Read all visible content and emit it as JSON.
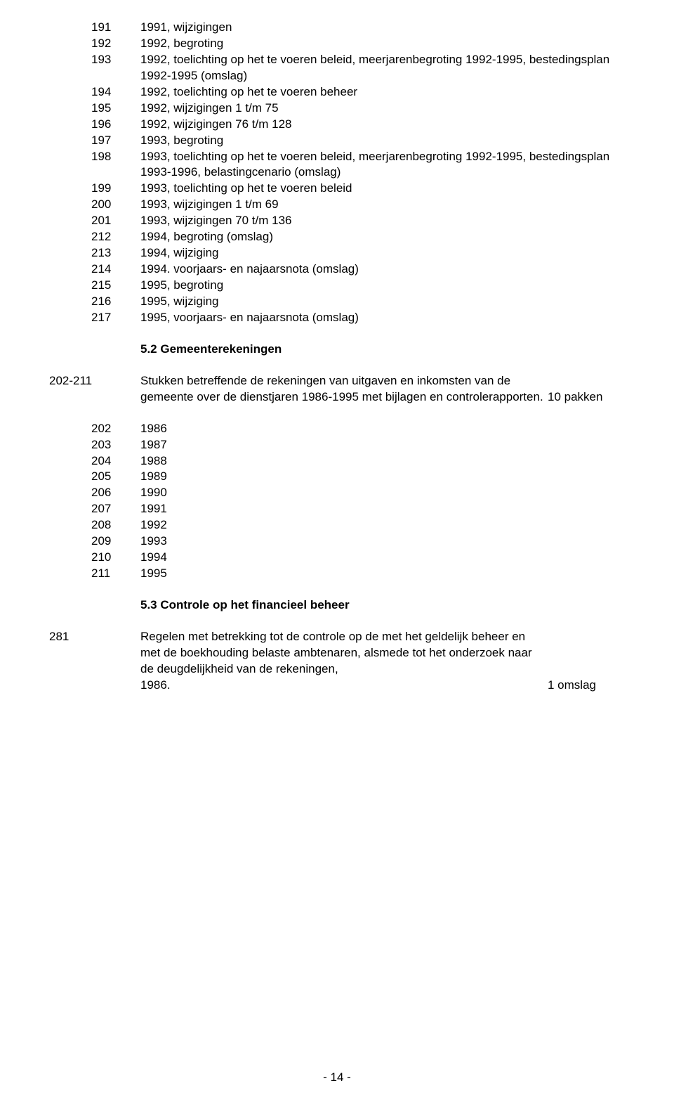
{
  "block1": [
    {
      "num": "191",
      "text": "1991, wijzigingen"
    },
    {
      "num": "192",
      "text": "1992, begroting"
    },
    {
      "num": "193",
      "text": "1992, toelichting op het te voeren beleid, meerjarenbegroting 1992-1995, bestedingsplan 1992-1995 (omslag)"
    },
    {
      "num": "194",
      "text": "1992, toelichting op het te voeren beheer"
    },
    {
      "num": "195",
      "text": "1992, wijzigingen 1 t/m 75"
    },
    {
      "num": "196",
      "text": "1992, wijzigingen 76 t/m 128"
    },
    {
      "num": "197",
      "text": "1993, begroting"
    },
    {
      "num": "198",
      "text": "1993, toelichting op het te voeren beleid, meerjarenbegroting 1992-1995, bestedingsplan 1993-1996, belastingcenario (omslag)"
    },
    {
      "num": "199",
      "text": "1993, toelichting op het te voeren beleid"
    },
    {
      "num": "200",
      "text": "1993, wijzigingen 1 t/m 69"
    },
    {
      "num": "201",
      "text": "1993, wijzigingen 70 t/m 136"
    },
    {
      "num": "212",
      "text": "1994, begroting (omslag)"
    },
    {
      "num": "213",
      "text": "1994, wijziging"
    },
    {
      "num": "214",
      "text": "1994. voorjaars- en najaarsnota (omslag)"
    },
    {
      "num": "215",
      "text": "1995, begroting"
    },
    {
      "num": "216",
      "text": "1995, wijziging"
    },
    {
      "num": "217",
      "text": "1995, voorjaars- en najaarsnota (omslag)"
    }
  ],
  "heading1": "5.2 Gemeenterekeningen",
  "entry1": {
    "ref": "202-211",
    "text": "Stukken betreffende de rekeningen van uitgaven en inkomsten van de gemeente over de dienstjaren 1986-1995 met bijlagen en controlerapporten.",
    "annot": "10 pakken"
  },
  "block2": [
    {
      "num": "202",
      "text": "1986"
    },
    {
      "num": "203",
      "text": "1987"
    },
    {
      "num": "204",
      "text": "1988"
    },
    {
      "num": "205",
      "text": "1989"
    },
    {
      "num": "206",
      "text": "1990"
    },
    {
      "num": "207",
      "text": "1991"
    },
    {
      "num": "208",
      "text": "1992"
    },
    {
      "num": "209",
      "text": "1993"
    },
    {
      "num": "210",
      "text": "1994"
    },
    {
      "num": "211",
      "text": "1995"
    }
  ],
  "heading2": "5.3 Controle op het financieel beheer",
  "entry2": {
    "ref": "281",
    "text": "Regelen met betrekking tot de controle op de met het geldelijk beheer en met de boekhouding belaste ambtenaren, alsmede tot het onderzoek naar de deugdelijkheid van de rekeningen,",
    "text2": "1986.",
    "annot": "1 omslag"
  },
  "footer": "- 14 -"
}
